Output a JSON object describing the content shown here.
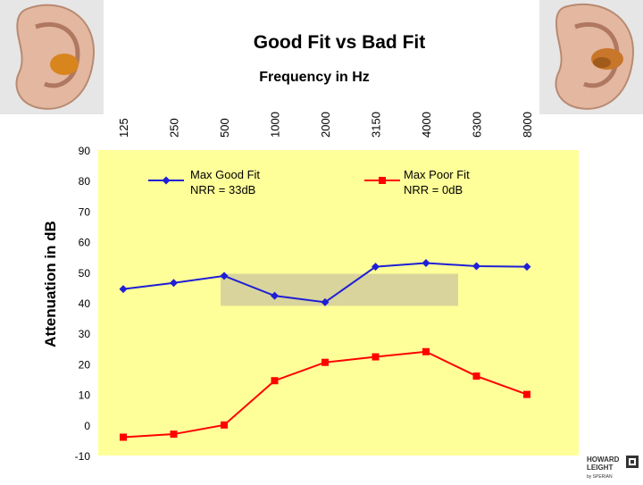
{
  "chart_data": {
    "type": "line",
    "title": "Good Fit vs Bad Fit",
    "xlabel": "Frequency in Hz",
    "ylabel": "Attenuation in dB",
    "categories": [
      "125",
      "250",
      "500",
      "1000",
      "2000",
      "3150",
      "4000",
      "6300",
      "8000"
    ],
    "y_ticks": [
      "90",
      "80",
      "70",
      "60",
      "50",
      "40",
      "30",
      "20",
      "10",
      "0",
      "-10"
    ],
    "ylim": [
      -10,
      90
    ],
    "series": [
      {
        "name_line1": "Max Good Fit",
        "name_line2": "NRR = 33dB",
        "color": "#1f1fd6",
        "marker": "diamond",
        "values": [
          44.5,
          46.5,
          48.8,
          42.3,
          40.2,
          51.8,
          53.0,
          52.0,
          51.8
        ]
      },
      {
        "name_line1": "Max Poor Fit",
        "name_line2": "NRR = 0dB",
        "color": "#ff0000",
        "marker": "square",
        "values": [
          -4.0,
          -3.0,
          0.0,
          14.5,
          20.5,
          22.3,
          24.0,
          16.0,
          10.0
        ]
      }
    ],
    "highlight_band": {
      "from_category": "500",
      "to_category": "4000",
      "y_range": [
        39,
        49.5
      ],
      "color": "#d9d49b"
    },
    "plot_background": "#ffff99",
    "legend_placement": "top, inside plot"
  },
  "branding": {
    "logo_line1": "HOWARD",
    "logo_line2": "LEIGHT",
    "logo_sub": "by SPERIAN"
  },
  "images": {
    "left": "ear-with-earplug",
    "right": "ear-with-earplug"
  }
}
